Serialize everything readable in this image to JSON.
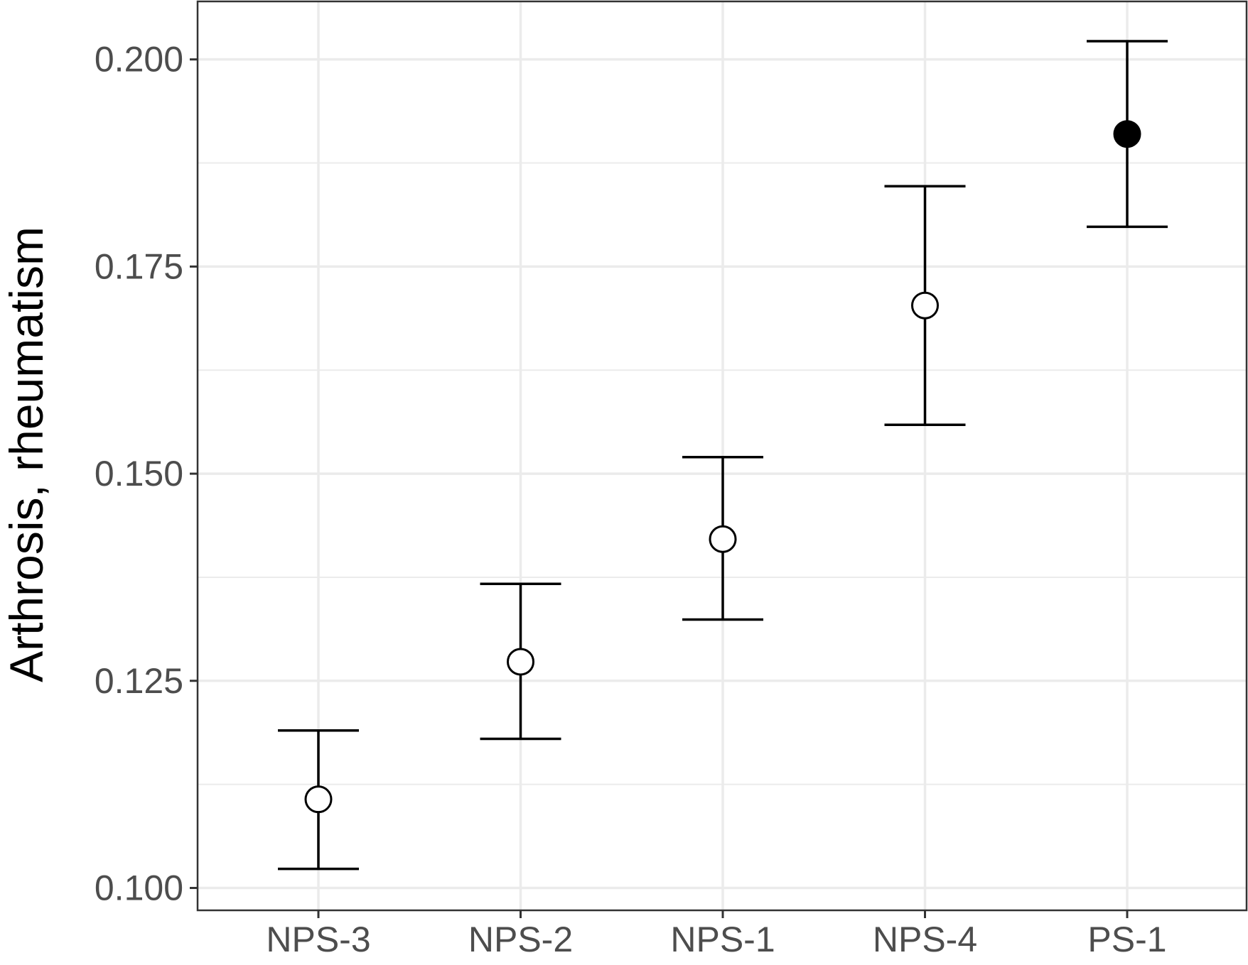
{
  "chart_data": {
    "type": "scatter",
    "title": "",
    "xlabel": "",
    "ylabel": "Arthrosis, rheumatism",
    "categories": [
      "NPS-3",
      "NPS-2",
      "NPS-1",
      "NPS-4",
      "PS-1"
    ],
    "points": [
      {
        "category": "NPS-3",
        "value": 0.1107,
        "lower": 0.1023,
        "upper": 0.119,
        "marker": "open"
      },
      {
        "category": "NPS-2",
        "value": 0.1273,
        "lower": 0.118,
        "upper": 0.1367,
        "marker": "open"
      },
      {
        "category": "NPS-1",
        "value": 0.1421,
        "lower": 0.1324,
        "upper": 0.152,
        "marker": "open"
      },
      {
        "category": "NPS-4",
        "value": 0.1703,
        "lower": 0.1559,
        "upper": 0.1847,
        "marker": "open"
      },
      {
        "category": "PS-1",
        "value": 0.191,
        "lower": 0.1798,
        "upper": 0.2022,
        "marker": "filled"
      }
    ],
    "ylim": [
      0.0973,
      0.207
    ],
    "yticks": [
      0.1,
      0.125,
      0.15,
      0.175,
      0.2
    ],
    "ytick_labels": [
      "0.100",
      "0.125",
      "0.150",
      "0.175",
      "0.200"
    ],
    "grid": true,
    "legend": "none",
    "colors": {
      "background": "#ffffff",
      "grid": "#ebebeb",
      "panel_border": "#333333",
      "marks": "#000000",
      "tick_label": "#4d4d4d"
    }
  }
}
